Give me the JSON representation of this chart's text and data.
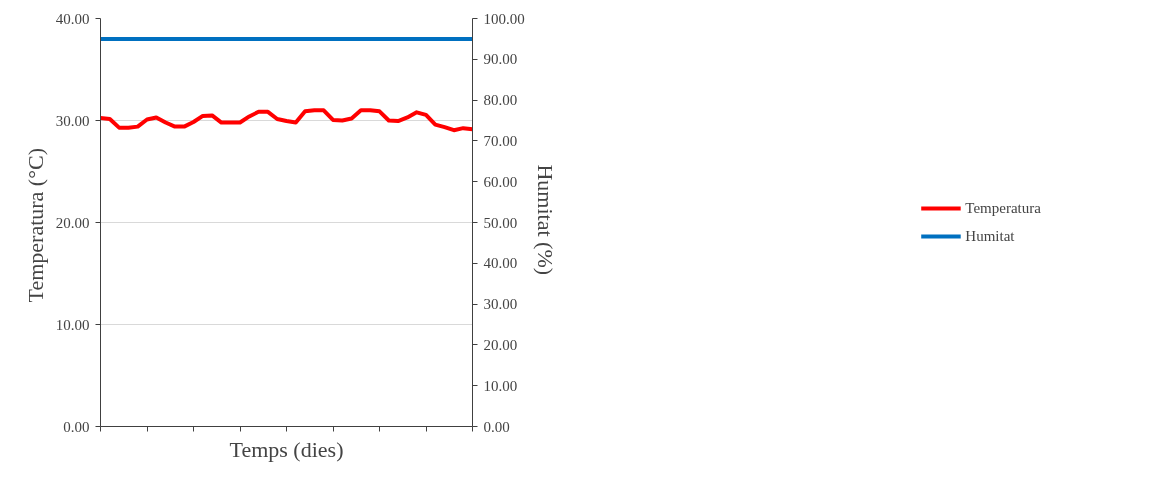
{
  "chart_data": {
    "type": "line",
    "xlabel": "Temps (dies)",
    "ylabel": "Temperatura  (°C)",
    "y2label": "Humitat  (%)",
    "categories": [
      null,
      null,
      null,
      null,
      null,
      null,
      null,
      null,
      null,
      null,
      null,
      null,
      null,
      null,
      null,
      null,
      null,
      null,
      null,
      null,
      null,
      null,
      null,
      null,
      null,
      null,
      null,
      null,
      null,
      null,
      null,
      null,
      null,
      null,
      null,
      null,
      null,
      null,
      null,
      null,
      null
    ],
    "series": [
      {
        "name": "Temperatura",
        "color": "#ff0000",
        "values": [
          30.25,
          30.15,
          29.3,
          29.3,
          29.4,
          30.1,
          30.3,
          29.8,
          29.4,
          29.4,
          29.85,
          30.45,
          30.5,
          29.8,
          29.8,
          29.8,
          30.4,
          30.85,
          30.85,
          30.15,
          29.95,
          29.8,
          30.9,
          31.0,
          31.0,
          30.05,
          30.0,
          30.2,
          31.0,
          31.0,
          30.9,
          30.0,
          29.95,
          30.3,
          30.8,
          30.55,
          29.6,
          29.35,
          29.05,
          29.25,
          29.15
        ]
      },
      {
        "name": "Humitat",
        "color": "#0070c0",
        "axis": "y2",
        "values": [
          95,
          95,
          95,
          95,
          95,
          95,
          95,
          95,
          95,
          95,
          95,
          95,
          95,
          95,
          95,
          95,
          95,
          95,
          95,
          95,
          95,
          95,
          95,
          95,
          95,
          95,
          95,
          95,
          95,
          95,
          95,
          95,
          95,
          95,
          95,
          95,
          95,
          95,
          95,
          95,
          95
        ]
      }
    ],
    "ylim": [
      0,
      40
    ],
    "yticks": [
      {
        "value": 0,
        "label": "0.00"
      },
      {
        "value": 10,
        "label": "10.00"
      },
      {
        "value": 20,
        "label": "20.00"
      },
      {
        "value": 30,
        "label": "30.00"
      },
      {
        "value": 40,
        "label": "40.00"
      }
    ],
    "y2lim": [
      0,
      100
    ],
    "y2ticks": [
      {
        "value": 0,
        "label": "0.00"
      },
      {
        "value": 10,
        "label": "10.00"
      },
      {
        "value": 20,
        "label": "20.00"
      },
      {
        "value": 30,
        "label": "30.00"
      },
      {
        "value": 40,
        "label": "40.00"
      },
      {
        "value": 50,
        "label": "50.00"
      },
      {
        "value": 60,
        "label": "60.00"
      },
      {
        "value": 70,
        "label": "70.00"
      },
      {
        "value": 80,
        "label": "80.00"
      },
      {
        "value": 90,
        "label": "90.00"
      },
      {
        "value": 100,
        "label": "100.00"
      }
    ],
    "grid": "y",
    "legend": "right",
    "tick_labels": "y",
    "line_style": "solid",
    "marker": "none"
  }
}
